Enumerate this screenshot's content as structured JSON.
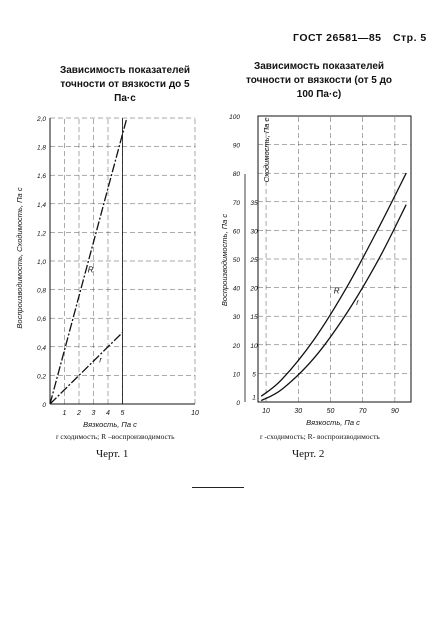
{
  "header": {
    "standard": "ГОСТ 26581—85",
    "page": "Стр. 5"
  },
  "chart_data": [
    {
      "type": "line",
      "title": "Зависимость показателей точности от вязкости до 5 Па·с",
      "xlabel": "Вязкость, Па с",
      "ylabel": "Воспроизводимость, Сходимость, Па с",
      "x_ticks": [
        "1",
        "2",
        "3",
        "4",
        "5",
        "10"
      ],
      "y_ticks": [
        "0",
        "0,2",
        "0,4",
        "0,6",
        "0,8",
        "1,0",
        "1,2",
        "1,4",
        "1,6",
        "1,8",
        "2,0"
      ],
      "xlim": [
        0,
        10
      ],
      "ylim": [
        0,
        2.0
      ],
      "grid": true,
      "series": [
        {
          "name": "R",
          "style": "dash-dot",
          "x": [
            0,
            5.3
          ],
          "y": [
            0,
            2.0
          ]
        },
        {
          "name": "r",
          "style": "dash-dot",
          "x": [
            0,
            5
          ],
          "y": [
            0,
            0.5
          ]
        }
      ],
      "caption": "r   сходимость; R –воспроизводимость",
      "figure": "Черт. 1"
    },
    {
      "type": "line",
      "title": "Зависимость показателей точности от вязкости (от 5 до 100 Па·с)",
      "xlabel": "Вязкость, Па с",
      "ylabel": "Воспроизводимость, Па с",
      "ylabel2": "Сходимость, Па с",
      "x_ticks": [
        "10",
        "30",
        "50",
        "70",
        "90"
      ],
      "y_ticks": [
        "0",
        "10",
        "20",
        "30",
        "40",
        "50",
        "60",
        "70",
        "80",
        "90",
        "100"
      ],
      "y2_ticks": [
        "1",
        "5",
        "10",
        "15",
        "20",
        "25",
        "30",
        "35"
      ],
      "xlim": [
        5,
        100
      ],
      "ylim": [
        0,
        100
      ],
      "grid": true,
      "series": [
        {
          "name": "R",
          "x": [
            7,
            20,
            40,
            60,
            80,
            97
          ],
          "y": [
            2,
            8,
            22,
            40,
            61,
            80
          ]
        },
        {
          "name": "r",
          "x": [
            7,
            20,
            40,
            60,
            80,
            97
          ],
          "y": [
            0.5,
            4.5,
            15.5,
            31,
            50,
            69
          ]
        }
      ],
      "caption": "r -сходимость; R- воспроизводимость",
      "figure": "Черт. 2"
    }
  ]
}
